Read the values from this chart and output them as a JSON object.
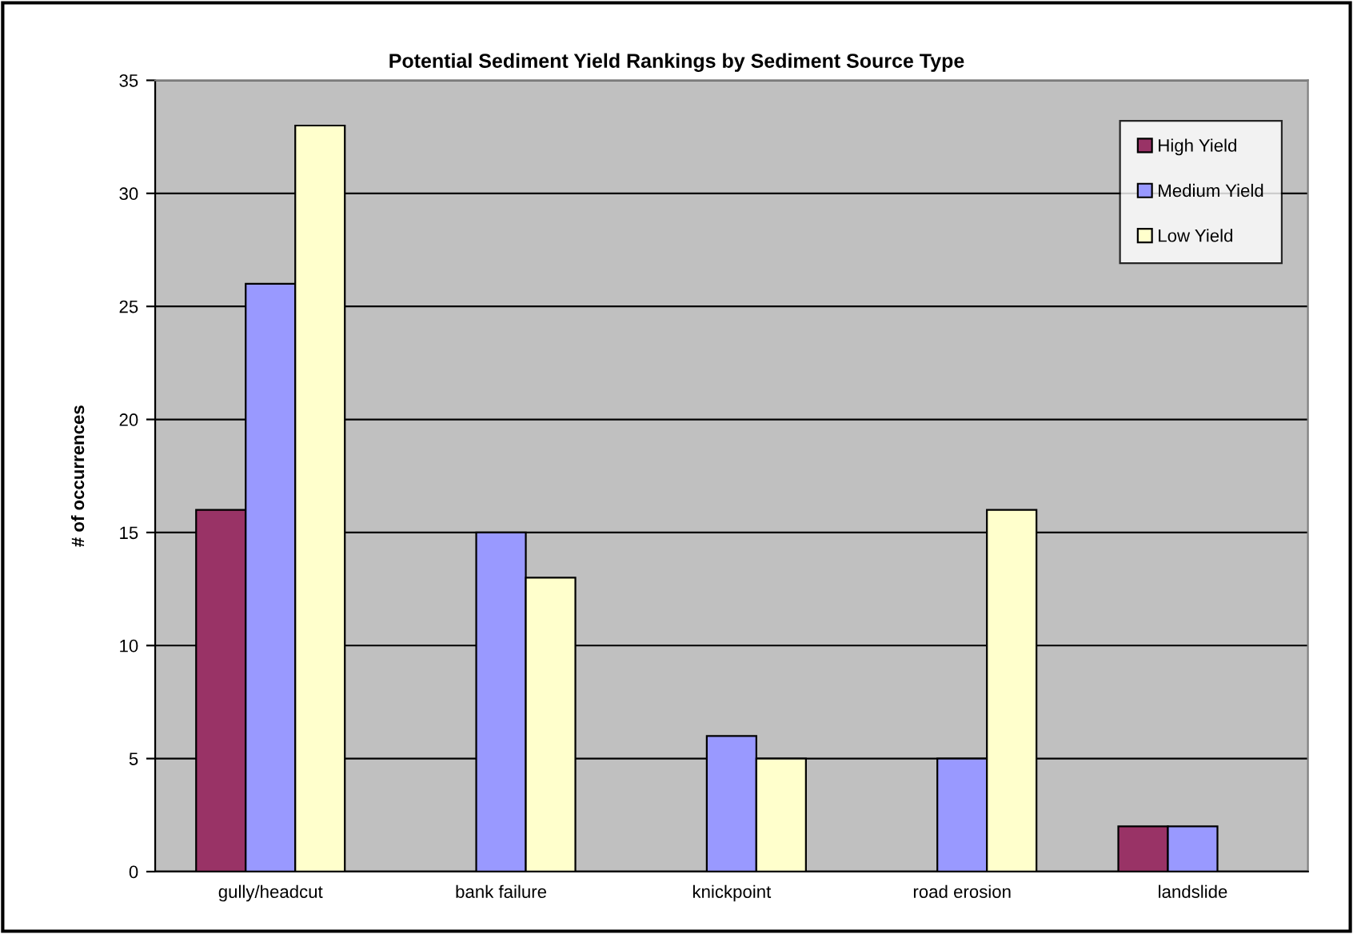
{
  "chart_data": {
    "type": "bar",
    "title": "Potential Sediment Yield Rankings by Sediment Source Type",
    "ylabel": "# of occurrences",
    "categories": [
      "gully/headcut",
      "bank failure",
      "knickpoint",
      "road erosion",
      "landslide"
    ],
    "series": [
      {
        "name": "High Yield",
        "color": "#993366",
        "values": [
          16,
          null,
          null,
          null,
          2
        ]
      },
      {
        "name": "Medium Yield",
        "color": "#9999ff",
        "values": [
          26,
          15,
          6,
          5,
          2
        ]
      },
      {
        "name": "Low Yield",
        "color": "#ffffcc",
        "values": [
          33,
          13,
          5,
          16,
          null
        ]
      }
    ],
    "ylim": [
      0,
      35
    ],
    "yticks": [
      0,
      5,
      10,
      15,
      20,
      25,
      30,
      35
    ],
    "grid": "y",
    "legend": "top right"
  }
}
